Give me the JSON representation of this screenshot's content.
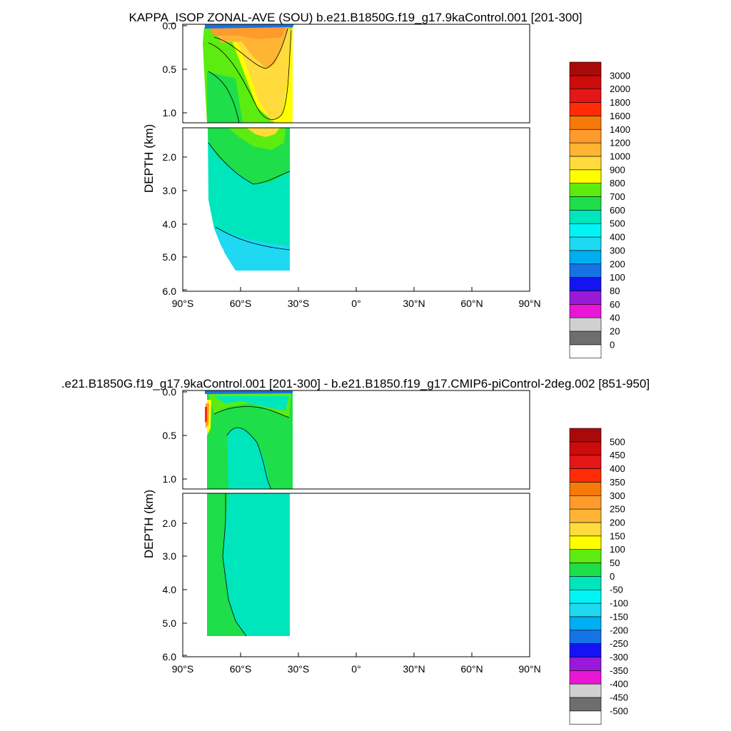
{
  "panels": [
    {
      "title": "KAPPA_ISOP ZONAL-AVE (SOU) b.e21.B1850G.f19_g17.9kaControl.001 [201-300]",
      "ylabel": "DEPTH (km)",
      "upper_ticks": [
        "0.0",
        "0.5",
        "1.0"
      ],
      "lower_ticks": [
        "2.0",
        "3.0",
        "4.0",
        "5.0",
        "6.0"
      ],
      "x_ticks": [
        "90°S",
        "60°S",
        "30°S",
        "0°",
        "30°N",
        "60°N",
        "90°N"
      ],
      "colorbar_labels": [
        "3000",
        "2000",
        "1800",
        "1600",
        "1400",
        "1200",
        "1000",
        "900",
        "800",
        "700",
        "600",
        "500",
        "400",
        "300",
        "200",
        "100",
        "80",
        "60",
        "40",
        "20",
        "0"
      ]
    },
    {
      "title": ".e21.B1850G.f19_g17.9kaControl.001 [201-300] - b.e21.B1850.f19_g17.CMIP6-piControl-2deg.002 [851-950]",
      "ylabel": "DEPTH (km)",
      "upper_ticks": [
        "0.0",
        "0.5",
        "1.0"
      ],
      "lower_ticks": [
        "2.0",
        "3.0",
        "4.0",
        "5.0",
        "6.0"
      ],
      "x_ticks": [
        "90°S",
        "60°S",
        "30°S",
        "0°",
        "30°N",
        "60°N",
        "90°N"
      ],
      "colorbar_labels": [
        "500",
        "450",
        "400",
        "350",
        "300",
        "250",
        "200",
        "150",
        "100",
        "50",
        "0",
        "-50",
        "-100",
        "-150",
        "-200",
        "-250",
        "-300",
        "-350",
        "-400",
        "-450",
        "-500"
      ]
    }
  ],
  "colors": {
    "scale": [
      "#ffffff",
      "#6e6e6e",
      "#d0d0d0",
      "#e817d6",
      "#9a18d8",
      "#1414f2",
      "#1673e6",
      "#00aef2",
      "#1fd8f2",
      "#00f4f4",
      "#00e6bc",
      "#1ede4a",
      "#5cec10",
      "#ffff00",
      "#ffdc3c",
      "#ffb434",
      "#ff9a2c",
      "#f57a0a",
      "#ff2c06",
      "#e41616",
      "#cc0b0b",
      "#a80a0a"
    ],
    "axis": "#000000"
  },
  "chart_data": [
    {
      "type": "heatmap",
      "title": "KAPPA_ISOP ZONAL-AVE (SOU) b.e21.B1850G.f19_g17.9kaControl.001 [201-300]",
      "xlabel": "",
      "ylabel": "DEPTH (km)",
      "xlim": [
        -90,
        90
      ],
      "ylim": [
        0,
        6
      ],
      "data_extent_lat": [
        -77,
        -34
      ],
      "max_depth_km": 5.4,
      "levels": [
        0,
        20,
        40,
        60,
        80,
        100,
        200,
        300,
        400,
        500,
        600,
        700,
        800,
        900,
        1000,
        1200,
        1400,
        1600,
        1800,
        2000,
        3000
      ],
      "features": [
        {
          "name": "surface maximum",
          "lat": [
            -55,
            -40
          ],
          "depth_km": [
            0,
            0.4
          ],
          "value_range": [
            1000,
            1400
          ]
        },
        {
          "name": "mid-depth tongue",
          "lat": [
            -50,
            -38
          ],
          "depth_km": [
            0.4,
            1.6
          ],
          "value_range": [
            800,
            1000
          ]
        },
        {
          "name": "upper-ocean band",
          "lat": [
            -75,
            -34
          ],
          "depth_km": [
            0.5,
            2.6
          ],
          "value_range": [
            600,
            800
          ]
        },
        {
          "name": "deep ocean",
          "lat": [
            -77,
            -34
          ],
          "depth_km": [
            2.6,
            5.4
          ],
          "value_range": [
            400,
            600
          ]
        }
      ]
    },
    {
      "type": "heatmap",
      "title": ".e21.B1850G.f19_g17.9kaControl.001 [201-300] - b.e21.B1850.f19_g17.CMIP6-piControl-2deg.002 [851-950]",
      "xlabel": "",
      "ylabel": "DEPTH (km)",
      "xlim": [
        -90,
        90
      ],
      "ylim": [
        0,
        6
      ],
      "data_extent_lat": [
        -77,
        -34
      ],
      "max_depth_km": 5.4,
      "levels": [
        -500,
        -450,
        -400,
        -350,
        -300,
        -250,
        -200,
        -150,
        -100,
        -50,
        0,
        50,
        100,
        150,
        200,
        250,
        300,
        350,
        400,
        450,
        500
      ],
      "features": [
        {
          "name": "near-surface positive anomaly",
          "lat": [
            -77,
            -74
          ],
          "depth_km": [
            0,
            0.5
          ],
          "value_range": [
            100,
            300
          ]
        },
        {
          "name": "surface positive band",
          "lat": [
            -72,
            -34
          ],
          "depth_km": [
            0,
            0.2
          ],
          "value_range": [
            0,
            50
          ]
        },
        {
          "name": "interior",
          "lat": [
            -72,
            -34
          ],
          "depth_km": [
            0.2,
            5.4
          ],
          "value_range": [
            -50,
            0
          ]
        },
        {
          "name": "southern boundary band",
          "lat": [
            -77,
            -70
          ],
          "depth_km": [
            0.5,
            5.0
          ],
          "value_range": [
            0,
            50
          ]
        }
      ]
    }
  ]
}
